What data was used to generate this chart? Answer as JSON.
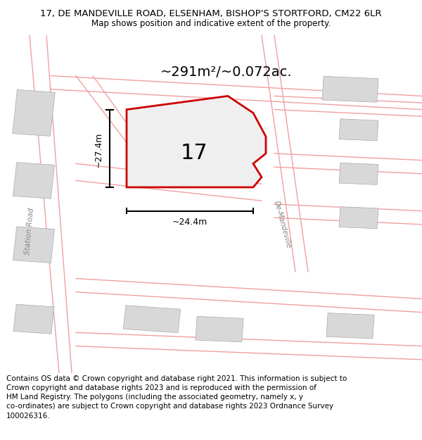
{
  "title": "17, DE MANDEVILLE ROAD, ELSENHAM, BISHOP'S STORTFORD, CM22 6LR",
  "subtitle": "Map shows position and indicative extent of the property.",
  "footer_line1": "Contains OS data © Crown copyright and database right 2021. This information is subject to",
  "footer_line2": "Crown copyright and database rights 2023 and is reproduced with the permission of",
  "footer_line3": "HM Land Registry. The polygons (including the associated geometry, namely x, y",
  "footer_line4": "co-ordinates) are subject to Crown copyright and database rights 2023 Ordnance Survey",
  "footer_line5": "100026316.",
  "area_label": "~291m²/~0.072ac.",
  "width_label": "~24.4m",
  "height_label": "~27.4m",
  "number_label": "17",
  "road_label_1": "Station Road",
  "road_label_2": "De-Mandeville",
  "map_bg": "#f2eeee",
  "plot_fill": "#efefef",
  "plot_stroke": "#cc0000",
  "road_color": "#f0a0a0",
  "building_color": "#d8d8d8",
  "title_fontsize": 9.5,
  "subtitle_fontsize": 8.5,
  "footer_fontsize": 7.5,
  "area_fontsize": 14,
  "dim_fontsize": 9,
  "number_fontsize": 22
}
